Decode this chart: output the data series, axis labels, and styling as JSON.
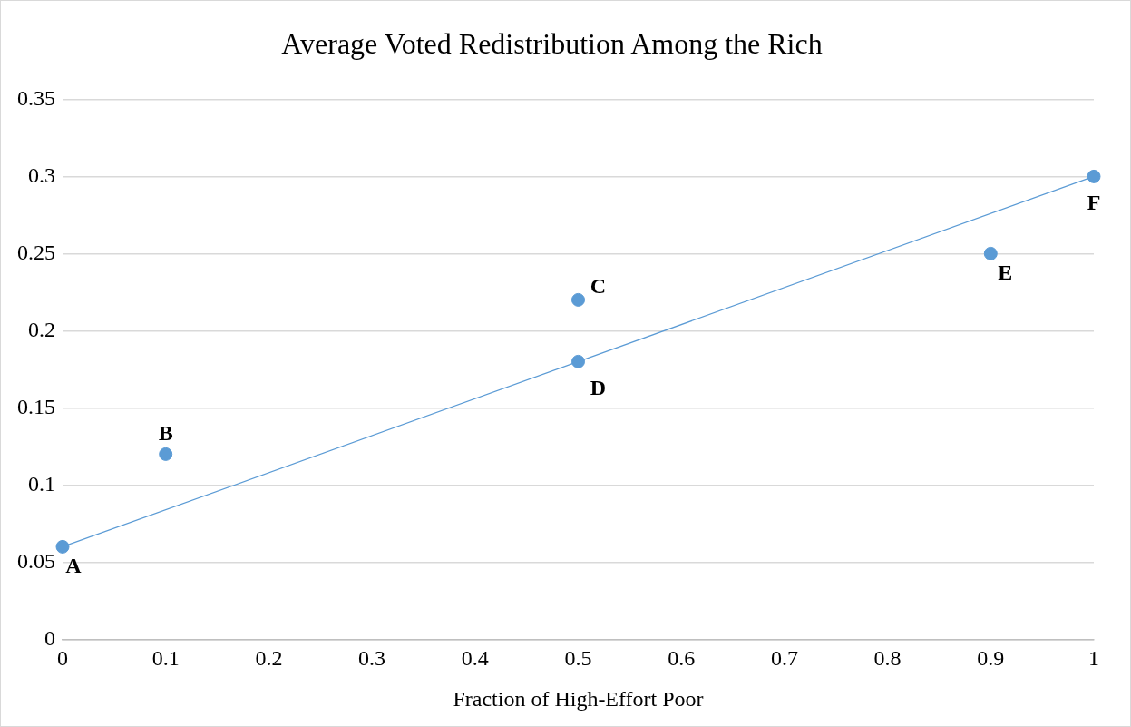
{
  "chart_data": {
    "type": "scatter",
    "title": "Average Voted Redistribution Among the Rich",
    "xlabel": "Fraction of High-Effort Poor",
    "xlim": [
      0,
      1
    ],
    "xticks": [
      0,
      0.1,
      0.2,
      0.3,
      0.4,
      0.5,
      0.6,
      0.7,
      0.8,
      0.9,
      1
    ],
    "ylim": [
      0,
      0.35
    ],
    "yticks": [
      0,
      0.05,
      0.1,
      0.15,
      0.2,
      0.25,
      0.3,
      0.35
    ],
    "grid": "y",
    "legend": false,
    "marker": "circle",
    "x": [
      0,
      0.1,
      0.5,
      0.5,
      0.9,
      1
    ],
    "series": [
      {
        "type": "scatter",
        "color": "#5b9bd5",
        "values": [
          0.06,
          0.12,
          0.22,
          0.18,
          0.25,
          0.3
        ]
      },
      {
        "type": "line",
        "color": "#5b9bd5",
        "x": [
          0,
          1
        ],
        "values": [
          0.06,
          0.3
        ],
        "marker": "none",
        "line_style": "solid"
      }
    ],
    "annotations": [
      {
        "text": "A",
        "x": 0,
        "y": 0.06
      },
      {
        "text": "B",
        "x": 0.1,
        "y": 0.12
      },
      {
        "text": "C",
        "x": 0.5,
        "y": 0.22
      },
      {
        "text": "D",
        "x": 0.5,
        "y": 0.18
      },
      {
        "text": "E",
        "x": 0.9,
        "y": 0.25
      },
      {
        "text": "F",
        "x": 1,
        "y": 0.3
      }
    ]
  }
}
